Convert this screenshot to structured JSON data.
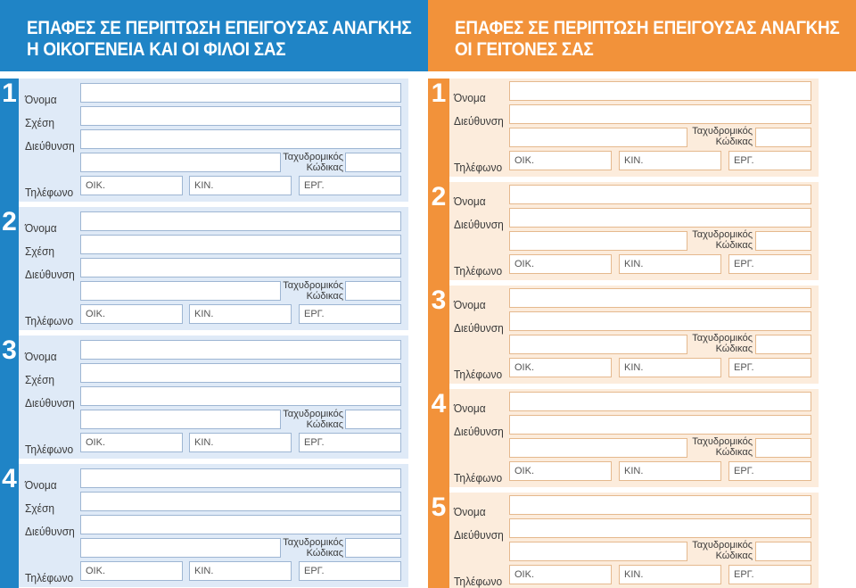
{
  "left": {
    "title_line1": "ΕΠΑΦΕΣ ΣΕ ΠΕΡΙΠΤΩΣΗ ΕΠΕΙΓΟΥΣΑΣ ΑΝΑΓΚΗΣ",
    "title_line2": "Η ΟΙΚΟΓΕΝΕΙΑ ΚΑΙ ΟΙ ΦΙΛΟΙ ΣΑΣ",
    "entries": [
      {
        "number": "1"
      },
      {
        "number": "2"
      },
      {
        "number": "3"
      },
      {
        "number": "4"
      }
    ]
  },
  "right": {
    "title_line1": "ΕΠΑΦΕΣ ΣΕ ΠΕΡΙΠΤΩΣΗ ΕΠΕΙΓΟΥΣΑΣ ΑΝΑΓΚΗΣ",
    "title_line2": "ΟΙ ΓΕΙΤΟΝΕΣ ΣΑΣ",
    "entries": [
      {
        "number": "1"
      },
      {
        "number": "2"
      },
      {
        "number": "3"
      },
      {
        "number": "4"
      },
      {
        "number": "5"
      }
    ]
  },
  "labels": {
    "name": "Όνομα",
    "relation": "Σχέση",
    "address": "Διεύθυνση",
    "phone": "Τηλέφωνο",
    "zip_line1": "Ταχυδρομικός",
    "zip_line2": "Κώδικας",
    "home": "ΟΙΚ.",
    "mobile": "ΚΙΝ.",
    "work": "ΕΡΓ."
  },
  "colors": {
    "left_accent": "#1f84c6",
    "right_accent": "#f2923a",
    "left_block_bg": "#dfeaf7",
    "right_block_bg": "#fcecdc"
  }
}
